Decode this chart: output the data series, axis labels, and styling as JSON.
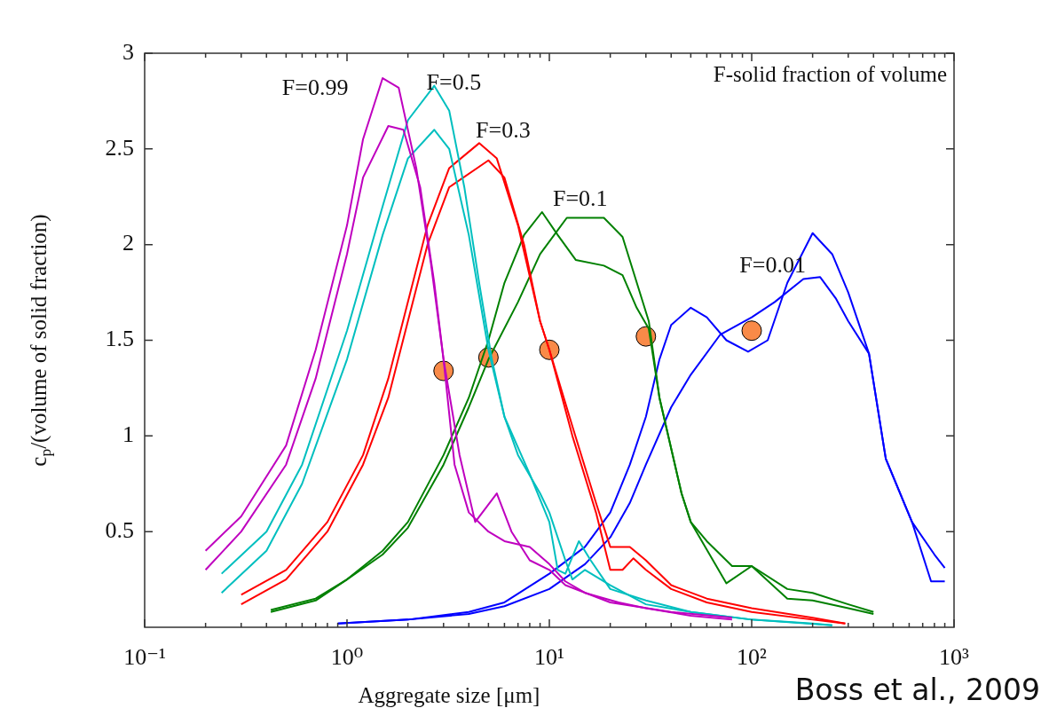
{
  "chart_data": {
    "type": "line",
    "xlabel": "Aggregate size [μm]",
    "ylabel": "c$_{p}$/(volume of solid fraction)",
    "log": "x",
    "grid": false,
    "legend": false,
    "xlim": [
      0.1,
      1000
    ],
    "ylim": [
      0,
      3
    ],
    "xticks": [
      {
        "value": 0.1,
        "label": "10⁻¹"
      },
      {
        "value": 0.2,
        "label": null
      },
      {
        "value": 0.3,
        "label": null
      },
      {
        "value": 0.4,
        "label": null
      },
      {
        "value": 0.5,
        "label": null
      },
      {
        "value": 0.6,
        "label": null
      },
      {
        "value": 0.7,
        "label": null
      },
      {
        "value": 0.8,
        "label": null
      },
      {
        "value": 0.9,
        "label": null
      },
      {
        "value": 1,
        "label": "10⁰"
      },
      {
        "value": 2,
        "label": null
      },
      {
        "value": 3,
        "label": null
      },
      {
        "value": 4,
        "label": null
      },
      {
        "value": 5,
        "label": null
      },
      {
        "value": 6,
        "label": null
      },
      {
        "value": 7,
        "label": null
      },
      {
        "value": 8,
        "label": null
      },
      {
        "value": 9,
        "label": null
      },
      {
        "value": 10,
        "label": "10¹"
      },
      {
        "value": 20,
        "label": null
      },
      {
        "value": 30,
        "label": null
      },
      {
        "value": 40,
        "label": null
      },
      {
        "value": 50,
        "label": null
      },
      {
        "value": 60,
        "label": null
      },
      {
        "value": 70,
        "label": null
      },
      {
        "value": 80,
        "label": null
      },
      {
        "value": 90,
        "label": null
      },
      {
        "value": 100,
        "label": "10²"
      },
      {
        "value": 200,
        "label": null
      },
      {
        "value": 300,
        "label": null
      },
      {
        "value": 400,
        "label": null
      },
      {
        "value": 500,
        "label": null
      },
      {
        "value": 600,
        "label": null
      },
      {
        "value": 700,
        "label": null
      },
      {
        "value": 800,
        "label": null
      },
      {
        "value": 900,
        "label": null
      },
      {
        "value": 1000,
        "label": "10³"
      }
    ],
    "yticks": [
      0.5,
      1,
      1.5,
      2,
      2.5,
      3
    ],
    "series": [
      {
        "name": "F=0.99",
        "color": "#bf00bf",
        "x": [
          0.2,
          0.3,
          0.5,
          0.7,
          1.0,
          1.2,
          1.5,
          1.8,
          2.2,
          2.6,
          3.0,
          3.4,
          4,
          5,
          6,
          8,
          10,
          12,
          15,
          22,
          30,
          50,
          80
        ],
        "values": [
          0.4,
          0.58,
          0.95,
          1.45,
          2.1,
          2.55,
          2.87,
          2.82,
          2.4,
          1.9,
          1.4,
          0.85,
          0.6,
          0.5,
          0.45,
          0.42,
          0.33,
          0.24,
          0.18,
          0.13,
          0.1,
          0.06,
          0.04
        ]
      },
      {
        "color": "#bf00bf",
        "x": [
          0.2,
          0.3,
          0.5,
          0.7,
          1.0,
          1.2,
          1.6,
          1.9,
          2.3,
          2.7,
          3.0,
          3.6,
          4.3,
          5.5,
          6.5,
          8,
          10,
          12,
          20,
          40,
          80
        ],
        "values": [
          0.3,
          0.5,
          0.85,
          1.3,
          1.95,
          2.35,
          2.62,
          2.6,
          2.3,
          1.8,
          1.4,
          0.9,
          0.55,
          0.7,
          0.5,
          0.35,
          0.3,
          0.22,
          0.13,
          0.08,
          0.05
        ]
      },
      {
        "name": "F=0.5",
        "color": "#00bfbf",
        "x": [
          0.24,
          0.4,
          0.6,
          1.0,
          1.5,
          2.0,
          2.7,
          3.2,
          3.8,
          4.5,
          5.2,
          6,
          7,
          9,
          10,
          12,
          13,
          15,
          20,
          30,
          50,
          100,
          200,
          250
        ],
        "values": [
          0.28,
          0.5,
          0.85,
          1.55,
          2.2,
          2.65,
          2.83,
          2.7,
          2.3,
          1.8,
          1.4,
          1.1,
          0.9,
          0.7,
          0.6,
          0.35,
          0.25,
          0.3,
          0.22,
          0.12,
          0.08,
          0.04,
          0.02,
          0.01
        ]
      },
      {
        "color": "#00bfbf",
        "x": [
          0.24,
          0.4,
          0.6,
          1.0,
          1.5,
          2.0,
          2.7,
          3.2,
          4,
          5,
          6,
          8,
          10,
          11,
          12,
          14,
          16,
          20,
          30,
          50,
          100,
          250
        ],
        "values": [
          0.18,
          0.4,
          0.75,
          1.4,
          2.05,
          2.45,
          2.6,
          2.5,
          2.05,
          1.45,
          1.1,
          0.8,
          0.55,
          0.3,
          0.28,
          0.45,
          0.35,
          0.2,
          0.14,
          0.08,
          0.04,
          0.01
        ]
      },
      {
        "name": "F=0.3",
        "color": "#ff0000",
        "x": [
          0.3,
          0.5,
          0.8,
          1.2,
          1.6,
          2.0,
          2.5,
          3.2,
          4.5,
          5.5,
          7,
          9,
          10,
          13,
          17,
          20,
          25,
          30,
          40,
          60,
          100,
          200,
          290
        ],
        "values": [
          0.17,
          0.3,
          0.55,
          0.9,
          1.3,
          1.7,
          2.1,
          2.4,
          2.53,
          2.45,
          2.1,
          1.6,
          1.45,
          1.05,
          0.65,
          0.42,
          0.42,
          0.35,
          0.22,
          0.15,
          0.1,
          0.05,
          0.02
        ]
      },
      {
        "color": "#ff0000",
        "x": [
          0.3,
          0.5,
          0.8,
          1.2,
          1.6,
          2.0,
          2.5,
          3.2,
          5,
          6,
          7.5,
          9,
          10,
          13,
          17,
          20,
          23,
          26,
          30,
          40,
          60,
          100,
          200,
          290
        ],
        "values": [
          0.12,
          0.25,
          0.5,
          0.85,
          1.2,
          1.6,
          2.0,
          2.3,
          2.44,
          2.35,
          2.0,
          1.6,
          1.45,
          1.0,
          0.6,
          0.3,
          0.3,
          0.36,
          0.3,
          0.2,
          0.13,
          0.08,
          0.04,
          0.02
        ]
      },
      {
        "name": "F=0.1",
        "color": "#008000",
        "x": [
          0.42,
          0.7,
          1.0,
          1.5,
          2,
          3,
          4,
          5,
          6,
          7.5,
          9.2,
          11,
          13.5,
          18.6,
          23,
          27,
          31,
          35,
          45,
          50,
          60,
          80,
          100,
          150,
          200,
          300,
          400
        ],
        "values": [
          0.09,
          0.15,
          0.25,
          0.4,
          0.55,
          0.9,
          1.2,
          1.5,
          1.8,
          2.05,
          2.17,
          2.05,
          1.92,
          1.89,
          1.84,
          1.67,
          1.56,
          1.2,
          0.7,
          0.55,
          0.45,
          0.32,
          0.32,
          0.2,
          0.18,
          0.12,
          0.08
        ]
      },
      {
        "color": "#008000",
        "x": [
          0.42,
          0.7,
          1.0,
          1.5,
          2,
          3,
          4,
          5,
          7,
          9,
          12.2,
          18.6,
          23,
          31,
          35,
          45,
          50,
          75,
          100,
          150,
          200,
          300,
          400
        ],
        "values": [
          0.08,
          0.14,
          0.25,
          0.38,
          0.52,
          0.85,
          1.15,
          1.4,
          1.7,
          1.95,
          2.14,
          2.14,
          2.04,
          1.6,
          1.2,
          0.7,
          0.55,
          0.23,
          0.32,
          0.15,
          0.14,
          0.1,
          0.07
        ]
      },
      {
        "name": "F=0.01",
        "color": "#0000ff",
        "x": [
          0.9,
          2,
          4,
          6,
          10,
          15,
          20,
          25,
          30,
          35,
          40,
          50,
          60,
          75,
          96,
          120,
          150,
          200,
          250,
          300,
          380,
          460,
          620,
          800,
          900
        ],
        "values": [
          0.02,
          0.04,
          0.08,
          0.13,
          0.28,
          0.42,
          0.6,
          0.85,
          1.1,
          1.4,
          1.58,
          1.67,
          1.62,
          1.5,
          1.44,
          1.5,
          1.8,
          2.06,
          1.95,
          1.75,
          1.43,
          0.88,
          0.55,
          0.38,
          0.31
        ]
      },
      {
        "color": "#0000ff",
        "x": [
          0.9,
          2,
          4,
          6,
          10,
          15,
          20,
          25,
          30,
          40,
          50,
          70,
          100,
          130,
          180,
          218,
          260,
          300,
          380,
          460,
          620,
          770,
          900
        ],
        "values": [
          0.02,
          0.04,
          0.07,
          0.11,
          0.2,
          0.33,
          0.47,
          0.65,
          0.85,
          1.15,
          1.32,
          1.53,
          1.62,
          1.7,
          1.82,
          1.83,
          1.72,
          1.6,
          1.43,
          0.88,
          0.55,
          0.24,
          0.24
        ]
      },
      {
        "type": "scatter",
        "color": "#f98a48",
        "x": [
          3,
          5,
          10,
          30,
          100
        ],
        "values": [
          1.34,
          1.41,
          1.45,
          1.52,
          1.55
        ]
      }
    ],
    "annotations": [
      "F-solid fraction of volume",
      "Boss et al., 2009"
    ]
  }
}
